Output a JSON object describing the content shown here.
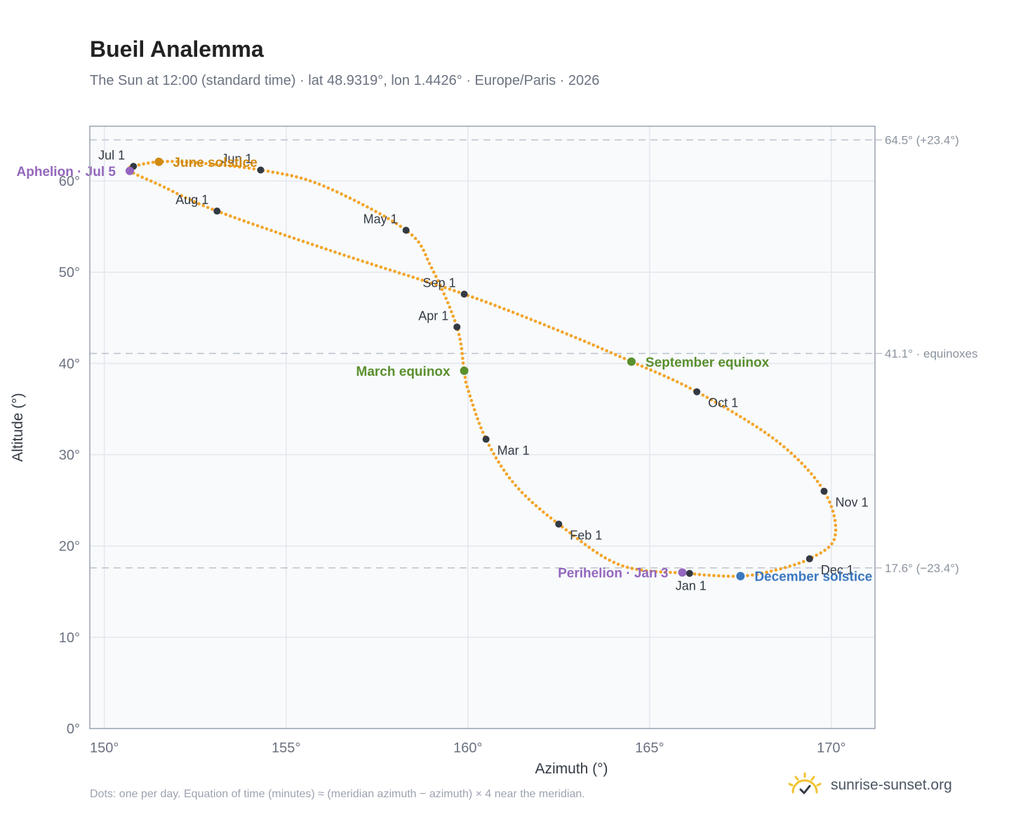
{
  "header": {
    "title": "Bueil Analemma",
    "subtitle": "The Sun at 12:00 (standard time) · lat 48.9319°, lon 1.4426° · Europe/Paris · 2026"
  },
  "footer": {
    "note": "Dots: one per day. Equation of time (minutes) ≈ (meridian azimuth − azimuth) × 4 near the meridian.",
    "brand": "sunrise-sunset.org",
    "brand_icon": "sunrise-logo-icon"
  },
  "chart_data": {
    "type": "scatter",
    "xlabel": "Azimuth (°)",
    "ylabel": "Altitude (°)",
    "xlim": [
      149.6,
      171.2
    ],
    "ylim": [
      0,
      66
    ],
    "x_ticks": [
      150,
      155,
      160,
      165,
      170
    ],
    "x_tick_labels": [
      "150°",
      "155°",
      "160°",
      "165°",
      "170°"
    ],
    "y_ticks": [
      0,
      10,
      20,
      30,
      40,
      50,
      60
    ],
    "y_tick_labels": [
      "0°",
      "10°",
      "20°",
      "30°",
      "40°",
      "50°",
      "60°"
    ],
    "grid": true,
    "colors": {
      "daily_dots": "#f2a52a",
      "month_markers": "#333a44",
      "solstice_june": "#d08a12",
      "solstice_december": "#3c78c0",
      "equinox": "#5a8f2e",
      "apsis": "#9467bd",
      "reference_lines": "#bcc3cc",
      "plot_background": "#f8fafc"
    },
    "reference_lines": [
      {
        "y": 64.5,
        "label": "64.5° (+23.4°)"
      },
      {
        "y": 41.1,
        "label": "41.1° · equinoxes"
      },
      {
        "y": 17.6,
        "label": "17.6° (−23.4°)"
      }
    ],
    "daily_path": [
      {
        "x": 166.1,
        "y": 17.0
      },
      {
        "x": 164.2,
        "y": 17.9
      },
      {
        "x": 162.5,
        "y": 22.4
      },
      {
        "x": 161.3,
        "y": 26.7
      },
      {
        "x": 160.5,
        "y": 31.7
      },
      {
        "x": 160.0,
        "y": 37.2
      },
      {
        "x": 159.9,
        "y": 39.2
      },
      {
        "x": 159.7,
        "y": 44.0
      },
      {
        "x": 159.0,
        "y": 50.5
      },
      {
        "x": 158.3,
        "y": 54.6
      },
      {
        "x": 156.0,
        "y": 59.5
      },
      {
        "x": 154.3,
        "y": 61.2
      },
      {
        "x": 152.5,
        "y": 62.0
      },
      {
        "x": 151.5,
        "y": 62.1
      },
      {
        "x": 150.8,
        "y": 61.6
      },
      {
        "x": 150.7,
        "y": 61.1
      },
      {
        "x": 151.5,
        "y": 59.6
      },
      {
        "x": 153.1,
        "y": 56.7
      },
      {
        "x": 156.5,
        "y": 52.0
      },
      {
        "x": 159.9,
        "y": 47.6
      },
      {
        "x": 162.5,
        "y": 43.6
      },
      {
        "x": 164.5,
        "y": 40.2
      },
      {
        "x": 166.3,
        "y": 36.9
      },
      {
        "x": 168.5,
        "y": 31.5
      },
      {
        "x": 169.8,
        "y": 26.0
      },
      {
        "x": 170.1,
        "y": 21.0
      },
      {
        "x": 169.4,
        "y": 18.6
      },
      {
        "x": 168.3,
        "y": 17.2
      },
      {
        "x": 167.5,
        "y": 16.7
      },
      {
        "x": 166.6,
        "y": 16.8
      },
      {
        "x": 166.1,
        "y": 17.0
      }
    ],
    "month_markers": [
      {
        "label": "Jan 1",
        "x": 166.1,
        "y": 17.0,
        "pos": "below"
      },
      {
        "label": "Feb 1",
        "x": 162.5,
        "y": 22.4,
        "pos": "right-below"
      },
      {
        "label": "Mar 1",
        "x": 160.5,
        "y": 31.7,
        "pos": "right-below"
      },
      {
        "label": "Apr 1",
        "x": 159.7,
        "y": 44.0,
        "pos": "left-above"
      },
      {
        "label": "May 1",
        "x": 158.3,
        "y": 54.6,
        "pos": "left-above"
      },
      {
        "label": "Jun 1",
        "x": 154.3,
        "y": 61.2,
        "pos": "left-above"
      },
      {
        "label": "Jul 1",
        "x": 150.8,
        "y": 61.6,
        "pos": "left-above"
      },
      {
        "label": "Aug 1",
        "x": 153.1,
        "y": 56.7,
        "pos": "left-above"
      },
      {
        "label": "Sep 1",
        "x": 159.9,
        "y": 47.6,
        "pos": "left-above"
      },
      {
        "label": "Oct 1",
        "x": 166.3,
        "y": 36.9,
        "pos": "right-below"
      },
      {
        "label": "Nov 1",
        "x": 169.8,
        "y": 26.0,
        "pos": "right-below"
      },
      {
        "label": "Dec 1",
        "x": 169.4,
        "y": 18.6,
        "pos": "right-below"
      }
    ],
    "special_points": [
      {
        "label": "June solstice",
        "x": 151.5,
        "y": 62.1,
        "color": "#d08a12",
        "pos": "right"
      },
      {
        "label": "Aphelion · Jul 5",
        "x": 150.7,
        "y": 61.1,
        "color": "#9467bd",
        "pos": "left"
      },
      {
        "label": "March equinox",
        "x": 159.9,
        "y": 39.2,
        "color": "#5a8f2e",
        "pos": "left"
      },
      {
        "label": "September equinox",
        "x": 164.5,
        "y": 40.2,
        "color": "#5a8f2e",
        "pos": "right"
      },
      {
        "label": "Perihelion · Jan 3",
        "x": 165.9,
        "y": 17.1,
        "color": "#9467bd",
        "pos": "left"
      },
      {
        "label": "December solstice",
        "x": 167.5,
        "y": 16.7,
        "color": "#3c78c0",
        "pos": "right"
      }
    ]
  }
}
